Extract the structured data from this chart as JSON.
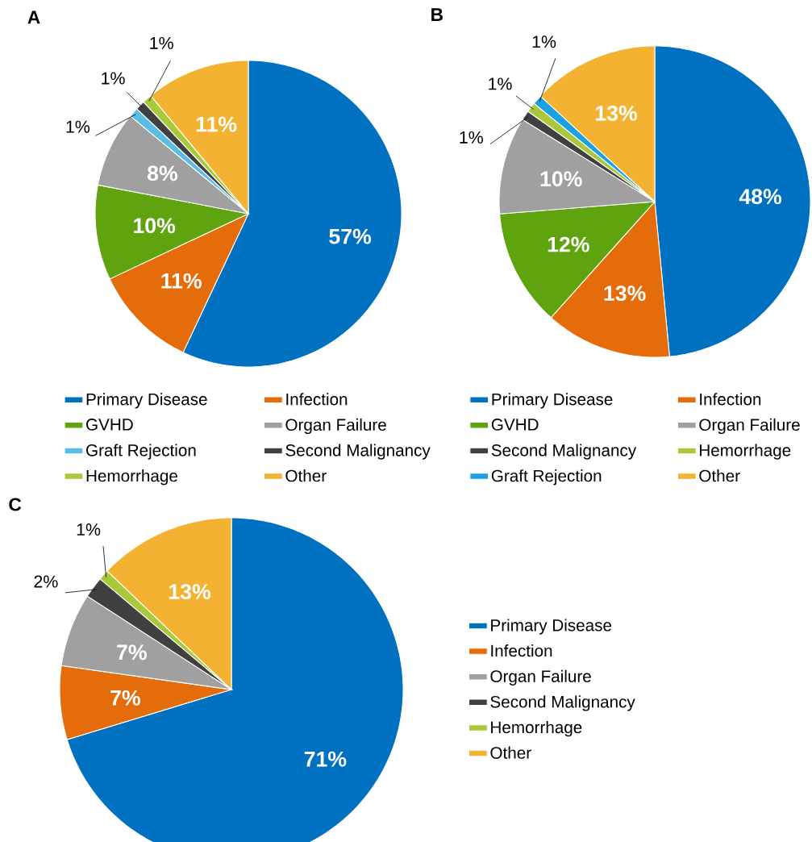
{
  "chart_data": [
    {
      "type": "pie",
      "title": "A",
      "categories": [
        "Primary Disease",
        "Infection",
        "GVHD",
        "Organ Failure",
        "Graft Rejection",
        "Second Malignancy",
        "Hemorrhage",
        "Other"
      ],
      "values": [
        57,
        11,
        10,
        8,
        1,
        1,
        1,
        11
      ],
      "value_labels": [
        "57%",
        "11%",
        "10%",
        "8%",
        "1%",
        "1%",
        "1%",
        "11%"
      ],
      "colors": [
        "#0070c0",
        "#e46c0a",
        "#5fa30f",
        "#a0a0a0",
        "#5bbce4",
        "#404040",
        "#a9c93a",
        "#f4b233"
      ],
      "legend": "bottom"
    },
    {
      "type": "pie",
      "title": "B",
      "categories": [
        "Primary Disease",
        "Infection",
        "GVHD",
        "Organ Failure",
        "Second Malignancy",
        "Hemorrhage",
        "Graft Rejection",
        "Other"
      ],
      "values": [
        48,
        13,
        12,
        10,
        1,
        1,
        1,
        13
      ],
      "value_labels": [
        "48%",
        "13%",
        "12%",
        "10%",
        "1%",
        "1%",
        "1%",
        "13%"
      ],
      "colors": [
        "#0070c0",
        "#e46c0a",
        "#5fa30f",
        "#a0a0a0",
        "#404040",
        "#a9c93a",
        "#1ba1e2",
        "#f4b233"
      ],
      "legend": "bottom"
    },
    {
      "type": "pie",
      "title": "C",
      "categories": [
        "Primary Disease",
        "Infection",
        "Organ Failure",
        "Second Malignancy",
        "Hemorrhage",
        "Other"
      ],
      "values": [
        71,
        7,
        7,
        2,
        1,
        13
      ],
      "value_labels": [
        "71%",
        "7%",
        "7%",
        "2%",
        "1%",
        "13%"
      ],
      "colors": [
        "#0070c0",
        "#e46c0a",
        "#a0a0a0",
        "#404040",
        "#a9c93a",
        "#f4b233"
      ],
      "legend": "right"
    }
  ]
}
